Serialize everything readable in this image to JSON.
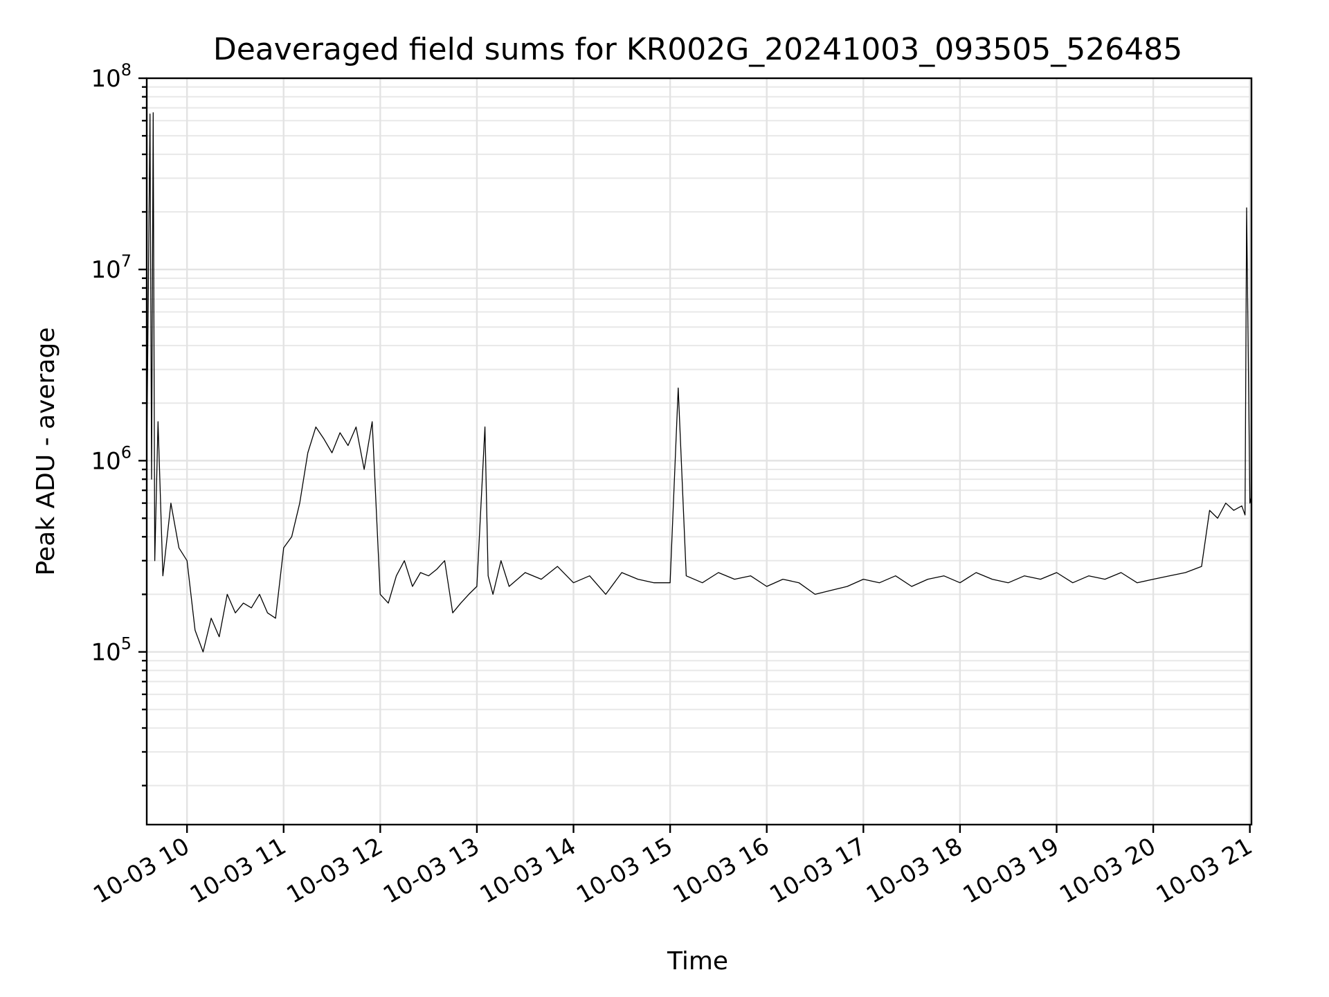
{
  "chart_data": {
    "type": "line",
    "title": "Deaveraged field sums for KR002G_20241003_093505_526485",
    "xlabel": "Time",
    "ylabel": "Peak ADU - average",
    "yscale": "log",
    "xlim": [
      "2024-10-03 09:35",
      "2024-10-03 21:01"
    ],
    "ylim": [
      12500,
      100000000
    ],
    "grid": true,
    "legend": "none",
    "line_color": "#000000",
    "x_ticks": [
      {
        "value": "2024-10-03 10:00",
        "label": "10-03 10"
      },
      {
        "value": "2024-10-03 11:00",
        "label": "10-03 11"
      },
      {
        "value": "2024-10-03 12:00",
        "label": "10-03 12"
      },
      {
        "value": "2024-10-03 13:00",
        "label": "10-03 13"
      },
      {
        "value": "2024-10-03 14:00",
        "label": "10-03 14"
      },
      {
        "value": "2024-10-03 15:00",
        "label": "10-03 15"
      },
      {
        "value": "2024-10-03 16:00",
        "label": "10-03 16"
      },
      {
        "value": "2024-10-03 17:00",
        "label": "10-03 17"
      },
      {
        "value": "2024-10-03 18:00",
        "label": "10-03 18"
      },
      {
        "value": "2024-10-03 19:00",
        "label": "10-03 19"
      },
      {
        "value": "2024-10-03 20:00",
        "label": "10-03 20"
      },
      {
        "value": "2024-10-03 21:00",
        "label": "10-03 21"
      }
    ],
    "y_ticks": [
      {
        "value": 100000,
        "base": "10",
        "exp": "5"
      },
      {
        "value": 1000000,
        "base": "10",
        "exp": "6"
      },
      {
        "value": 10000000,
        "base": "10",
        "exp": "7"
      },
      {
        "value": 100000000,
        "base": "10",
        "exp": "8"
      }
    ],
    "series": [
      {
        "x": [
          "2024-10-03 09:35",
          "2024-10-03 09:37",
          "2024-10-03 09:38",
          "2024-10-03 09:39",
          "2024-10-03 09:40",
          "2024-10-03 09:42",
          "2024-10-03 09:45",
          "2024-10-03 09:50",
          "2024-10-03 09:55",
          "2024-10-03 10:00",
          "2024-10-03 10:05",
          "2024-10-03 10:10",
          "2024-10-03 10:15",
          "2024-10-03 10:20",
          "2024-10-03 10:25",
          "2024-10-03 10:30",
          "2024-10-03 10:35",
          "2024-10-03 10:40",
          "2024-10-03 10:45",
          "2024-10-03 10:50",
          "2024-10-03 10:55",
          "2024-10-03 11:00",
          "2024-10-03 11:05",
          "2024-10-03 11:10",
          "2024-10-03 11:15",
          "2024-10-03 11:20",
          "2024-10-03 11:25",
          "2024-10-03 11:30",
          "2024-10-03 11:35",
          "2024-10-03 11:40",
          "2024-10-03 11:45",
          "2024-10-03 11:50",
          "2024-10-03 11:55",
          "2024-10-03 12:00",
          "2024-10-03 12:05",
          "2024-10-03 12:10",
          "2024-10-03 12:15",
          "2024-10-03 12:20",
          "2024-10-03 12:25",
          "2024-10-03 12:30",
          "2024-10-03 12:35",
          "2024-10-03 12:40",
          "2024-10-03 12:45",
          "2024-10-03 12:50",
          "2024-10-03 12:55",
          "2024-10-03 13:00",
          "2024-10-03 13:05",
          "2024-10-03 13:07",
          "2024-10-03 13:10",
          "2024-10-03 13:15",
          "2024-10-03 13:20",
          "2024-10-03 13:30",
          "2024-10-03 13:40",
          "2024-10-03 13:50",
          "2024-10-03 14:00",
          "2024-10-03 14:10",
          "2024-10-03 14:20",
          "2024-10-03 14:30",
          "2024-10-03 14:40",
          "2024-10-03 14:50",
          "2024-10-03 15:00",
          "2024-10-03 15:05",
          "2024-10-03 15:10",
          "2024-10-03 15:20",
          "2024-10-03 15:30",
          "2024-10-03 15:40",
          "2024-10-03 15:50",
          "2024-10-03 16:00",
          "2024-10-03 16:10",
          "2024-10-03 16:20",
          "2024-10-03 16:30",
          "2024-10-03 16:40",
          "2024-10-03 16:50",
          "2024-10-03 17:00",
          "2024-10-03 17:10",
          "2024-10-03 17:20",
          "2024-10-03 17:30",
          "2024-10-03 17:40",
          "2024-10-03 17:50",
          "2024-10-03 18:00",
          "2024-10-03 18:10",
          "2024-10-03 18:20",
          "2024-10-03 18:30",
          "2024-10-03 18:40",
          "2024-10-03 18:50",
          "2024-10-03 19:00",
          "2024-10-03 19:10",
          "2024-10-03 19:20",
          "2024-10-03 19:30",
          "2024-10-03 19:40",
          "2024-10-03 19:50",
          "2024-10-03 20:00",
          "2024-10-03 20:10",
          "2024-10-03 20:20",
          "2024-10-03 20:30",
          "2024-10-03 20:35",
          "2024-10-03 20:40",
          "2024-10-03 20:45",
          "2024-10-03 20:50",
          "2024-10-03 20:55",
          "2024-10-03 20:57",
          "2024-10-03 20:58",
          "2024-10-03 21:00",
          "2024-10-03 21:01"
        ],
        "y": [
          1000000,
          65000000,
          800000,
          66000000,
          300000,
          1600000,
          250000,
          600000,
          350000,
          300000,
          130000,
          100000,
          150000,
          120000,
          200000,
          160000,
          180000,
          170000,
          200000,
          160000,
          150000,
          350000,
          400000,
          600000,
          1100000,
          1500000,
          1300000,
          1100000,
          1400000,
          1200000,
          1500000,
          900000,
          1600000,
          200000,
          180000,
          250000,
          300000,
          220000,
          260000,
          250000,
          270000,
          300000,
          160000,
          180000,
          200000,
          220000,
          1500000,
          250000,
          200000,
          300000,
          220000,
          260000,
          240000,
          280000,
          230000,
          250000,
          200000,
          260000,
          240000,
          230000,
          230000,
          2400000,
          250000,
          230000,
          260000,
          240000,
          250000,
          220000,
          240000,
          230000,
          200000,
          210000,
          220000,
          240000,
          230000,
          250000,
          220000,
          240000,
          250000,
          230000,
          260000,
          240000,
          230000,
          250000,
          240000,
          260000,
          230000,
          250000,
          240000,
          260000,
          230000,
          240000,
          250000,
          260000,
          280000,
          550000,
          500000,
          600000,
          550000,
          580000,
          520000,
          21000000,
          600000,
          650000
        ]
      }
    ]
  }
}
